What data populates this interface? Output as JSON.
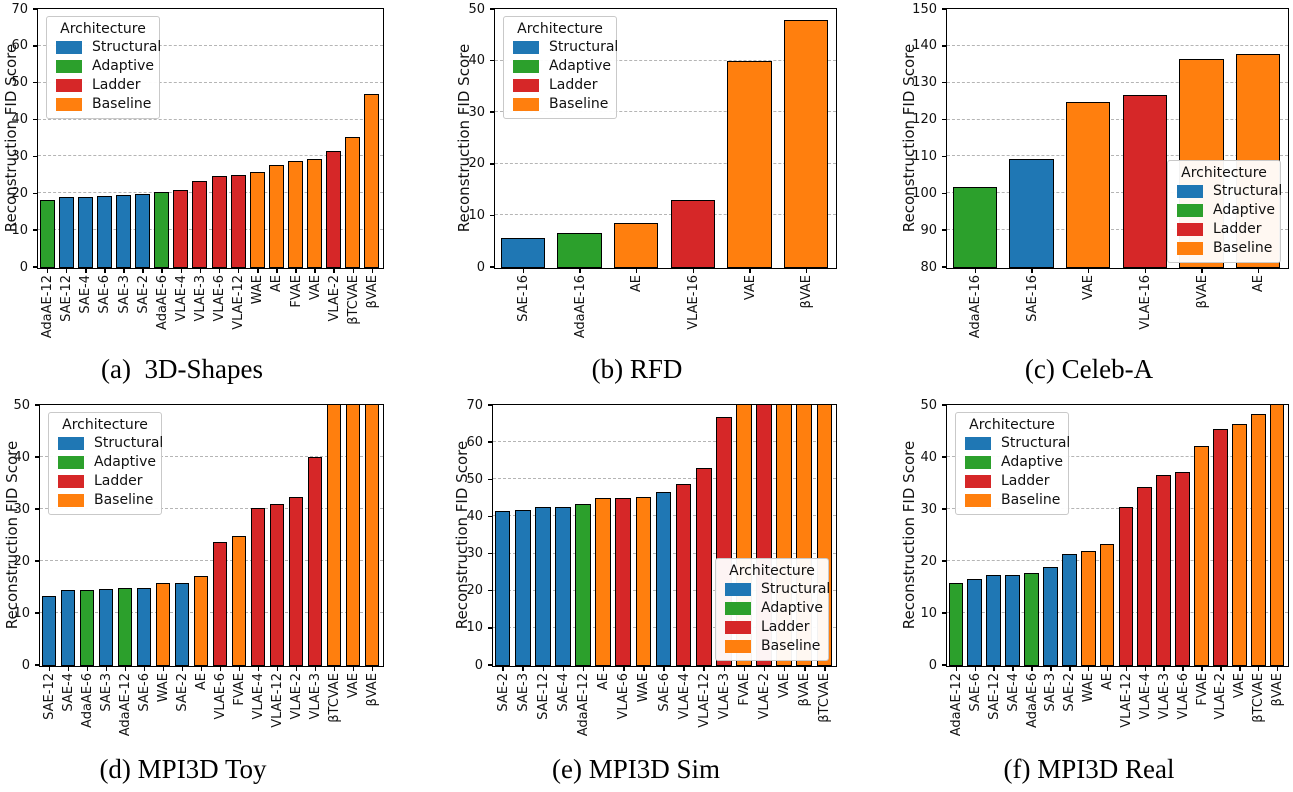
{
  "figure": {
    "description": "Reconstruction FID Score bar charts for six datasets"
  },
  "legend": {
    "title": "Architecture",
    "entries": [
      {
        "label": "Structural",
        "color": "#1f77b4"
      },
      {
        "label": "Adaptive",
        "color": "#2ca02c"
      },
      {
        "label": "Ladder",
        "color": "#d62728"
      },
      {
        "label": "Baseline",
        "color": "#ff7f0e"
      }
    ]
  },
  "colors": {
    "bar_edge": "#000000",
    "grid": "#b5b5b5",
    "axis": "#000000"
  },
  "chart_data": [
    {
      "id": "a",
      "type": "bar",
      "title": "(a)  3D-Shapes",
      "ylabel": "Reconstruction FID Score",
      "ylim": [
        0,
        70
      ],
      "yticks": [
        0,
        10,
        20,
        30,
        40,
        50,
        60,
        70
      ],
      "grid": true,
      "legend_position": "upper-left",
      "categories": [
        "AdaAE-12",
        "SAE-12",
        "SAE-4",
        "SAE-6",
        "SAE-3",
        "SAE-2",
        "AdaAE-6",
        "VLAE-4",
        "VLAE-3",
        "VLAE-6",
        "VLAE-12",
        "WAE",
        "AE",
        "FVAE",
        "VAE",
        "VLAE-2",
        "βTCVAE",
        "βVAE"
      ],
      "values": [
        18.4,
        19.0,
        19.0,
        19.4,
        19.7,
        20.0,
        20.5,
        21.0,
        23.5,
        24.9,
        25.2,
        26.0,
        27.8,
        29.0,
        29.4,
        31.7,
        35.5,
        47.0
      ],
      "bar_archs": [
        "Adaptive",
        "Structural",
        "Structural",
        "Structural",
        "Structural",
        "Structural",
        "Adaptive",
        "Ladder",
        "Ladder",
        "Ladder",
        "Ladder",
        "Baseline",
        "Baseline",
        "Baseline",
        "Baseline",
        "Ladder",
        "Baseline",
        "Baseline"
      ],
      "clipped": [
        false,
        false,
        false,
        false,
        false,
        false,
        false,
        false,
        false,
        false,
        false,
        false,
        false,
        false,
        false,
        false,
        false,
        false
      ]
    },
    {
      "id": "b",
      "type": "bar",
      "title": "(b) RFD",
      "ylabel": "Reconstruction FID Score",
      "ylim": [
        0,
        50
      ],
      "yticks": [
        0,
        10,
        20,
        30,
        40,
        50
      ],
      "grid": true,
      "legend_position": "upper-left",
      "categories": [
        "SAE-16",
        "AdaAE-16",
        "AE",
        "VLAE-16",
        "VAE",
        "βVAE"
      ],
      "values": [
        5.8,
        6.7,
        8.7,
        13.0,
        40.0,
        48.0
      ],
      "bar_archs": [
        "Structural",
        "Adaptive",
        "Baseline",
        "Ladder",
        "Baseline",
        "Baseline"
      ],
      "clipped": [
        false,
        false,
        false,
        false,
        false,
        false
      ]
    },
    {
      "id": "c",
      "type": "bar",
      "title": "(c) Celeb-A",
      "ylabel": "Reconstruction FID Score",
      "ylim": [
        80,
        150
      ],
      "yticks": [
        80,
        90,
        100,
        110,
        120,
        130,
        140,
        150
      ],
      "grid": true,
      "legend_position": "lower-right",
      "categories": [
        "AdaAE-16",
        "SAE-16",
        "VAE",
        "VLAE-16",
        "βVAE",
        "AE"
      ],
      "values": [
        101.8,
        109.5,
        124.9,
        126.9,
        136.7,
        138.0
      ],
      "bar_archs": [
        "Adaptive",
        "Structural",
        "Baseline",
        "Ladder",
        "Baseline",
        "Baseline"
      ],
      "clipped": [
        false,
        false,
        false,
        false,
        false,
        false
      ]
    },
    {
      "id": "d",
      "type": "bar",
      "title": "(d) MPI3D Toy",
      "ylabel": "Reconstruction FID Score",
      "ylim": [
        0,
        50
      ],
      "yticks": [
        0,
        10,
        20,
        30,
        40,
        50
      ],
      "grid": true,
      "legend_position": "upper-left",
      "categories": [
        "SAE-12",
        "SAE-4",
        "AdaAE-6",
        "SAE-3",
        "AdaAE-12",
        "SAE-6",
        "WAE",
        "SAE-2",
        "AE",
        "VLAE-6",
        "FVAE",
        "VLAE-4",
        "VLAE-12",
        "VLAE-2",
        "VLAE-3",
        "βTCVAE",
        "VAE",
        "βVAE"
      ],
      "values": [
        13.4,
        14.5,
        14.5,
        14.8,
        14.9,
        15.0,
        15.9,
        15.9,
        17.2,
        23.7,
        25.0,
        30.3,
        31.1,
        32.5,
        40.1,
        50,
        50,
        50
      ],
      "bar_archs": [
        "Structural",
        "Structural",
        "Adaptive",
        "Structural",
        "Adaptive",
        "Structural",
        "Baseline",
        "Structural",
        "Baseline",
        "Ladder",
        "Baseline",
        "Ladder",
        "Ladder",
        "Ladder",
        "Ladder",
        "Baseline",
        "Baseline",
        "Baseline"
      ],
      "clipped": [
        false,
        false,
        false,
        false,
        false,
        false,
        false,
        false,
        false,
        false,
        false,
        false,
        false,
        false,
        false,
        true,
        true,
        true
      ]
    },
    {
      "id": "e",
      "type": "bar",
      "title": "(e) MPI3D Sim",
      "ylabel": "Reconstruction FID Score",
      "ylim": [
        0,
        70
      ],
      "yticks": [
        0,
        10,
        20,
        30,
        40,
        50,
        60,
        70
      ],
      "grid": true,
      "legend_position": "lower-right",
      "categories": [
        "SAE-2",
        "SAE-3",
        "SAE-12",
        "SAE-4",
        "AdaAE-12",
        "AE",
        "VLAE-6",
        "WAE",
        "SAE-6",
        "VLAE-4",
        "VLAE-12",
        "VLAE-3",
        "FVAE",
        "VLAE-2",
        "VAE",
        "βVAE",
        "βTCVAE"
      ],
      "values": [
        41.6,
        42.0,
        42.8,
        42.7,
        43.6,
        45.0,
        45.2,
        45.5,
        46.8,
        49.0,
        53.3,
        66.9,
        70,
        70,
        70,
        70,
        70
      ],
      "bar_archs": [
        "Structural",
        "Structural",
        "Structural",
        "Structural",
        "Adaptive",
        "Baseline",
        "Ladder",
        "Baseline",
        "Structural",
        "Ladder",
        "Ladder",
        "Ladder",
        "Baseline",
        "Ladder",
        "Baseline",
        "Baseline",
        "Baseline"
      ],
      "clipped": [
        false,
        false,
        false,
        false,
        false,
        false,
        false,
        false,
        false,
        false,
        false,
        false,
        true,
        true,
        true,
        true,
        true
      ]
    },
    {
      "id": "f",
      "type": "bar",
      "title": "(f) MPI3D Real",
      "ylabel": "Reconstruction FID Score",
      "ylim": [
        0,
        50
      ],
      "yticks": [
        0,
        10,
        20,
        30,
        40,
        50
      ],
      "grid": true,
      "legend_position": "upper-left",
      "categories": [
        "AdaAE-12",
        "SAE-6",
        "SAE-12",
        "SAE-4",
        "AdaAE-6",
        "SAE-3",
        "SAE-2",
        "WAE",
        "AE",
        "VLAE-12",
        "VLAE-4",
        "VLAE-3",
        "VLAE-6",
        "FVAE",
        "VLAE-2",
        "VAE",
        "βTCVAE",
        "βVAE"
      ],
      "values": [
        15.8,
        16.7,
        17.5,
        17.4,
        17.7,
        19.0,
        21.4,
        22.0,
        23.3,
        30.5,
        34.3,
        36.6,
        37.2,
        42.2,
        45.4,
        46.4,
        48.3,
        50
      ],
      "bar_archs": [
        "Adaptive",
        "Structural",
        "Structural",
        "Structural",
        "Adaptive",
        "Structural",
        "Structural",
        "Baseline",
        "Baseline",
        "Ladder",
        "Ladder",
        "Ladder",
        "Ladder",
        "Baseline",
        "Ladder",
        "Baseline",
        "Baseline",
        "Baseline"
      ],
      "clipped": [
        false,
        false,
        false,
        false,
        false,
        false,
        false,
        false,
        false,
        false,
        false,
        false,
        false,
        false,
        false,
        false,
        false,
        true
      ]
    }
  ]
}
